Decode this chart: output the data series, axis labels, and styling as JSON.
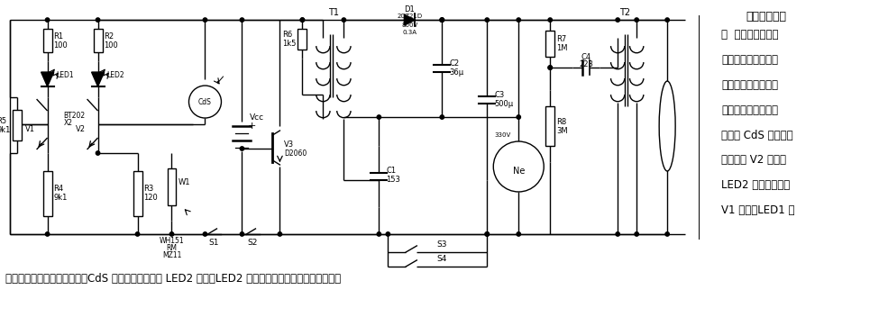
{
  "bg_color": "#ffffff",
  "title_text": "照相机测光系",
  "desc_lines": [
    "统  其测光系统是由",
    "两只晶体三极管构成",
    "的。当被摄物体的亮",
    "度较弱时，硫化镉光",
    "敏电阻 CdS 的阻值增",
    "大，于是 V2 截止，",
    "LED2 不发光。此时",
    "V1 导通，LED1 发"
  ],
  "bottom_text": "光。当被摄物的亮度增强时，CdS 的阻值减小，此时 LED2 熄灭，LED2 发光，从而提示是否使用闪光灯。"
}
